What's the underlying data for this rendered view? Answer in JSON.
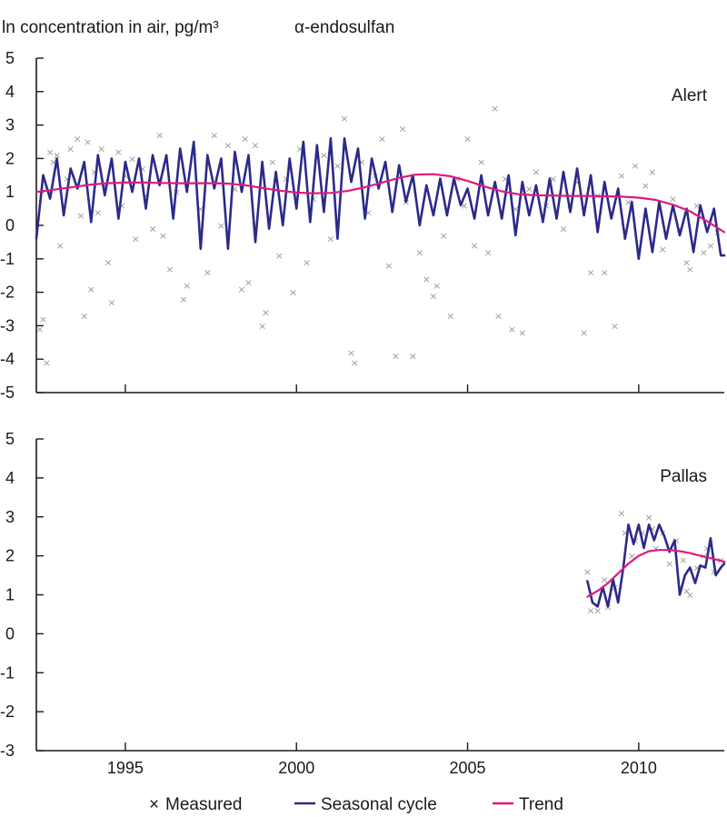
{
  "header": {
    "ylabel": "ln concentration in air, pg/m³",
    "compound": "α-endosulfan"
  },
  "legend": {
    "measured": "Measured",
    "seasonal": "Seasonal cycle",
    "trend": "Trend"
  },
  "colors": {
    "measured": "#9a9a9a",
    "seasonal": "#2b2a8a",
    "trend": "#e0197d",
    "axis": "#1a1a1a"
  },
  "chart_data": [
    {
      "type": "line",
      "station": "Alert",
      "xlim": [
        1992.4,
        2012.5
      ],
      "ylim": [
        -5,
        5
      ],
      "yticks": [
        5,
        4,
        3,
        2,
        1,
        0,
        -1,
        -2,
        -3,
        -4,
        -5
      ],
      "xticks": [
        1995,
        2000,
        2005,
        2010
      ],
      "show_x_tick_labels": false,
      "series": [
        {
          "name": "Seasonal cycle",
          "type": "line",
          "x": [
            1992.4,
            1992.6,
            1992.8,
            1993.0,
            1993.2,
            1993.4,
            1993.6,
            1993.8,
            1994.0,
            1994.2,
            1994.4,
            1994.6,
            1994.8,
            1995.0,
            1995.2,
            1995.4,
            1995.6,
            1995.8,
            1996.0,
            1996.2,
            1996.4,
            1996.6,
            1996.8,
            1997.0,
            1997.2,
            1997.4,
            1997.6,
            1997.8,
            1998.0,
            1998.2,
            1998.4,
            1998.6,
            1998.8,
            1999.0,
            1999.2,
            1999.4,
            1999.6,
            1999.8,
            2000.0,
            2000.2,
            2000.4,
            2000.6,
            2000.8,
            2001.0,
            2001.2,
            2001.4,
            2001.6,
            2001.8,
            2002.0,
            2002.2,
            2002.4,
            2002.6,
            2002.8,
            2003.0,
            2003.2,
            2003.4,
            2003.6,
            2003.8,
            2004.0,
            2004.2,
            2004.4,
            2004.6,
            2004.8,
            2005.0,
            2005.2,
            2005.4,
            2005.6,
            2005.8,
            2006.0,
            2006.2,
            2006.4,
            2006.6,
            2006.8,
            2007.0,
            2007.2,
            2007.4,
            2007.6,
            2007.8,
            2008.0,
            2008.2,
            2008.4,
            2008.6,
            2008.8,
            2009.0,
            2009.2,
            2009.4,
            2009.6,
            2009.8,
            2010.0,
            2010.2,
            2010.4,
            2010.6,
            2010.8,
            2011.0,
            2011.2,
            2011.4,
            2011.6,
            2011.8,
            2012.0,
            2012.2,
            2012.4,
            2012.5
          ],
          "y": [
            -0.4,
            1.5,
            0.8,
            2.0,
            0.3,
            1.7,
            1.1,
            1.9,
            0.1,
            2.1,
            0.9,
            2.0,
            0.2,
            1.9,
            1.0,
            2.0,
            0.5,
            2.1,
            1.2,
            2.1,
            0.2,
            2.3,
            1.0,
            2.5,
            -0.7,
            2.1,
            1.1,
            2.0,
            -0.7,
            2.2,
            1.0,
            2.1,
            -0.5,
            1.9,
            -0.1,
            1.6,
            0.0,
            2.0,
            0.5,
            2.5,
            0.1,
            2.4,
            0.4,
            2.6,
            -0.4,
            2.6,
            1.3,
            2.3,
            0.2,
            2.0,
            1.1,
            1.9,
            0.4,
            1.8,
            0.7,
            1.5,
            0.0,
            1.2,
            0.3,
            1.4,
            0.3,
            1.4,
            0.6,
            1.1,
            0.2,
            1.5,
            0.3,
            1.3,
            0.2,
            1.5,
            -0.3,
            1.3,
            0.3,
            1.2,
            0.1,
            1.4,
            0.2,
            1.6,
            0.4,
            1.7,
            0.3,
            1.5,
            -0.2,
            1.3,
            0.2,
            1.1,
            -0.4,
            0.7,
            -1.0,
            0.5,
            -0.8,
            0.7,
            -0.4,
            0.6,
            -0.3,
            0.5,
            -0.8,
            0.6,
            -0.2,
            0.5,
            -0.9,
            -0.9
          ]
        },
        {
          "name": "Trend",
          "type": "line",
          "x": [
            1992.4,
            1993.0,
            1993.5,
            1994.0,
            1994.5,
            1995.0,
            1995.5,
            1996.0,
            1996.5,
            1997.0,
            1997.5,
            1998.0,
            1998.5,
            1999.0,
            1999.5,
            2000.0,
            2000.5,
            2001.0,
            2001.5,
            2002.0,
            2002.5,
            2003.0,
            2003.5,
            2004.0,
            2004.5,
            2005.0,
            2005.5,
            2006.0,
            2006.5,
            2007.0,
            2007.5,
            2008.0,
            2008.5,
            2009.0,
            2009.5,
            2010.0,
            2010.5,
            2011.0,
            2011.5,
            2012.0,
            2012.5
          ],
          "y": [
            1.0,
            1.08,
            1.15,
            1.22,
            1.26,
            1.28,
            1.28,
            1.27,
            1.26,
            1.26,
            1.26,
            1.25,
            1.2,
            1.12,
            1.04,
            0.98,
            0.96,
            0.97,
            1.03,
            1.14,
            1.28,
            1.42,
            1.52,
            1.53,
            1.47,
            1.33,
            1.16,
            1.02,
            0.93,
            0.9,
            0.89,
            0.88,
            0.88,
            0.87,
            0.86,
            0.83,
            0.76,
            0.62,
            0.42,
            0.12,
            -0.2
          ]
        },
        {
          "name": "Measured",
          "type": "scatter",
          "points": [
            [
              1992.5,
              -3.1
            ],
            [
              1992.6,
              -2.8
            ],
            [
              1992.7,
              -4.1
            ],
            [
              1992.8,
              2.2
            ],
            [
              1992.9,
              1.9
            ],
            [
              1993.0,
              2.1
            ],
            [
              1993.1,
              -0.6
            ],
            [
              1993.3,
              1.4
            ],
            [
              1993.4,
              2.3
            ],
            [
              1993.6,
              2.6
            ],
            [
              1993.7,
              0.3
            ],
            [
              1993.8,
              -2.7
            ],
            [
              1993.9,
              2.5
            ],
            [
              1994.0,
              -1.9
            ],
            [
              1994.1,
              1.6
            ],
            [
              1994.2,
              0.4
            ],
            [
              1994.3,
              2.3
            ],
            [
              1994.4,
              1.2
            ],
            [
              1994.5,
              -1.1
            ],
            [
              1994.6,
              -2.3
            ],
            [
              1994.8,
              2.2
            ],
            [
              1994.9,
              0.6
            ],
            [
              1995.0,
              1.5
            ],
            [
              1995.2,
              2.0
            ],
            [
              1995.3,
              -0.4
            ],
            [
              1995.5,
              1.7
            ],
            [
              1995.6,
              0.9
            ],
            [
              1995.8,
              -0.1
            ],
            [
              1996.0,
              2.7
            ],
            [
              1996.1,
              -0.3
            ],
            [
              1996.3,
              -1.3
            ],
            [
              1996.5,
              1.0
            ],
            [
              1996.7,
              -2.2
            ],
            [
              1996.8,
              -1.8
            ],
            [
              1997.0,
              2.2
            ],
            [
              1997.2,
              0.5
            ],
            [
              1997.4,
              -1.4
            ],
            [
              1997.6,
              2.7
            ],
            [
              1997.8,
              0.0
            ],
            [
              1998.0,
              2.4
            ],
            [
              1998.2,
              1.1
            ],
            [
              1998.4,
              -1.9
            ],
            [
              1998.5,
              2.6
            ],
            [
              1998.6,
              -1.7
            ],
            [
              1998.8,
              2.4
            ],
            [
              1999.0,
              -3.0
            ],
            [
              1999.1,
              -2.6
            ],
            [
              1999.3,
              1.9
            ],
            [
              1999.5,
              -0.9
            ],
            [
              1999.7,
              1.4
            ],
            [
              1999.9,
              -2.0
            ],
            [
              2000.1,
              2.3
            ],
            [
              2000.3,
              -1.1
            ],
            [
              2000.5,
              0.8
            ],
            [
              2000.8,
              2.1
            ],
            [
              2001.0,
              -0.4
            ],
            [
              2001.2,
              1.8
            ],
            [
              2001.4,
              3.2
            ],
            [
              2001.6,
              -3.8
            ],
            [
              2001.7,
              -4.1
            ],
            [
              2001.9,
              1.9
            ],
            [
              2002.1,
              0.4
            ],
            [
              2002.3,
              1.5
            ],
            [
              2002.5,
              2.6
            ],
            [
              2002.7,
              -1.2
            ],
            [
              2002.9,
              -3.9
            ],
            [
              2003.1,
              2.9
            ],
            [
              2003.2,
              0.7
            ],
            [
              2003.4,
              -3.9
            ],
            [
              2003.6,
              -0.8
            ],
            [
              2003.8,
              -1.6
            ],
            [
              2004.0,
              -2.1
            ],
            [
              2004.1,
              -1.8
            ],
            [
              2004.3,
              -0.3
            ],
            [
              2004.5,
              -2.7
            ],
            [
              2004.7,
              1.4
            ],
            [
              2004.9,
              0.6
            ],
            [
              2005.0,
              2.6
            ],
            [
              2005.2,
              -0.6
            ],
            [
              2005.4,
              1.9
            ],
            [
              2005.6,
              -0.8
            ],
            [
              2005.8,
              3.5
            ],
            [
              2005.9,
              -2.7
            ],
            [
              2006.1,
              1.4
            ],
            [
              2006.3,
              -3.1
            ],
            [
              2006.4,
              0.5
            ],
            [
              2006.6,
              -3.2
            ],
            [
              2006.8,
              1.1
            ],
            [
              2007.0,
              1.6
            ],
            [
              2007.3,
              0.6
            ],
            [
              2007.5,
              1.4
            ],
            [
              2007.8,
              -0.1
            ],
            [
              2008.0,
              0.6
            ],
            [
              2008.2,
              1.3
            ],
            [
              2008.4,
              -3.2
            ],
            [
              2008.6,
              -1.4
            ],
            [
              2008.8,
              0.9
            ],
            [
              2009.0,
              -1.4
            ],
            [
              2009.3,
              -3.0
            ],
            [
              2009.5,
              1.5
            ],
            [
              2009.7,
              0.7
            ],
            [
              2009.9,
              1.8
            ],
            [
              2010.2,
              1.2
            ],
            [
              2010.4,
              1.6
            ],
            [
              2010.7,
              -0.7
            ],
            [
              2011.0,
              0.8
            ],
            [
              2011.2,
              -0.1
            ],
            [
              2011.4,
              -1.1
            ],
            [
              2011.5,
              -1.3
            ],
            [
              2011.7,
              0.6
            ],
            [
              2011.9,
              -0.8
            ],
            [
              2012.1,
              -0.6
            ],
            [
              2012.3,
              -0.2
            ]
          ]
        }
      ]
    },
    {
      "type": "line",
      "station": "Pallas",
      "xlim": [
        1992.4,
        2012.5
      ],
      "ylim": [
        -3,
        5
      ],
      "yticks": [
        5,
        4,
        3,
        2,
        1,
        0,
        -1,
        -2,
        -3
      ],
      "xticks": [
        1995,
        2000,
        2005,
        2010
      ],
      "xtick_labels": [
        "1995",
        "2000",
        "2005",
        "2010"
      ],
      "series": [
        {
          "name": "Seasonal cycle",
          "type": "line",
          "x": [
            2008.5,
            2008.65,
            2008.8,
            2008.95,
            2009.1,
            2009.25,
            2009.4,
            2009.55,
            2009.7,
            2009.85,
            2010.0,
            2010.15,
            2010.3,
            2010.45,
            2010.6,
            2010.75,
            2010.9,
            2011.05,
            2011.2,
            2011.35,
            2011.5,
            2011.65,
            2011.8,
            2011.95,
            2012.1,
            2012.25,
            2012.4,
            2012.5
          ],
          "y": [
            1.35,
            0.8,
            0.7,
            1.2,
            0.7,
            1.4,
            0.8,
            1.7,
            2.8,
            2.3,
            2.8,
            2.2,
            2.8,
            2.4,
            2.8,
            2.5,
            2.1,
            2.4,
            1.0,
            1.5,
            1.7,
            1.3,
            1.75,
            1.7,
            2.45,
            1.5,
            1.7,
            1.8
          ]
        },
        {
          "name": "Trend",
          "type": "line",
          "x": [
            2008.5,
            2008.8,
            2009.1,
            2009.4,
            2009.7,
            2010.0,
            2010.3,
            2010.6,
            2010.9,
            2011.2,
            2011.5,
            2011.8,
            2012.1,
            2012.5
          ],
          "y": [
            0.95,
            1.1,
            1.3,
            1.55,
            1.8,
            2.0,
            2.12,
            2.15,
            2.15,
            2.12,
            2.07,
            2.0,
            1.94,
            1.85
          ]
        },
        {
          "name": "Measured",
          "type": "scatter",
          "points": [
            [
              2008.5,
              1.6
            ],
            [
              2008.6,
              0.6
            ],
            [
              2008.8,
              0.6
            ],
            [
              2009.0,
              1.4
            ],
            [
              2009.1,
              0.7
            ],
            [
              2009.3,
              1.2
            ],
            [
              2009.5,
              3.1
            ],
            [
              2009.6,
              2.6
            ],
            [
              2009.8,
              2.0
            ],
            [
              2009.9,
              2.4
            ],
            [
              2010.1,
              2.6
            ],
            [
              2010.3,
              3.0
            ],
            [
              2010.4,
              2.7
            ],
            [
              2010.5,
              2.2
            ],
            [
              2010.7,
              2.6
            ],
            [
              2010.9,
              1.8
            ],
            [
              2011.1,
              2.4
            ],
            [
              2011.3,
              1.9
            ],
            [
              2011.4,
              1.1
            ],
            [
              2011.5,
              1.0
            ],
            [
              2011.7,
              1.7
            ],
            [
              2011.9,
              2.0
            ],
            [
              2012.0,
              2.2
            ],
            [
              2012.2,
              1.6
            ],
            [
              2012.4,
              1.9
            ]
          ]
        }
      ]
    }
  ]
}
